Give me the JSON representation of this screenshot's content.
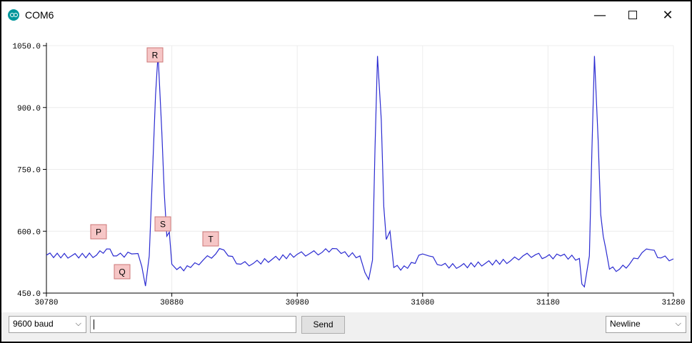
{
  "window": {
    "title": "COM6",
    "minimize": "—",
    "close": "✕"
  },
  "annotations": [
    "P",
    "Q",
    "R",
    "S",
    "T"
  ],
  "bottom": {
    "baud": "9600 baud",
    "message": "",
    "send": "Send",
    "line_ending": "Newline"
  },
  "chart_data": {
    "type": "line",
    "xlim": [
      30780,
      31280
    ],
    "ylim": [
      450,
      1050
    ],
    "x_ticks": [
      "30780",
      "30880",
      "30980",
      "31080",
      "31180",
      "31280"
    ],
    "y_ticks": [
      "450.0",
      "600.0",
      "750.0",
      "900.0",
      "1050.0"
    ],
    "grid": true,
    "series": [
      {
        "color": "#2b2bd1",
        "points": [
          [
            30780,
            542
          ],
          [
            30800,
            540
          ],
          [
            30820,
            542
          ],
          [
            30828,
            557
          ],
          [
            30836,
            540
          ],
          [
            30848,
            545
          ],
          [
            30853,
            546
          ],
          [
            30856,
            515
          ],
          [
            30859,
            467
          ],
          [
            30862,
            540
          ],
          [
            30867,
            930
          ],
          [
            30869,
            1030
          ],
          [
            30872,
            840
          ],
          [
            30874,
            690
          ],
          [
            30876,
            588
          ],
          [
            30878,
            598
          ],
          [
            30880,
            520
          ],
          [
            30884,
            507
          ],
          [
            30895,
            512
          ],
          [
            30905,
            530
          ],
          [
            30915,
            545
          ],
          [
            30918,
            558
          ],
          [
            30925,
            540
          ],
          [
            30935,
            520
          ],
          [
            30945,
            522
          ],
          [
            30960,
            532
          ],
          [
            30980,
            544
          ],
          [
            30990,
            546
          ],
          [
            31000,
            549
          ],
          [
            31008,
            558
          ],
          [
            31015,
            546
          ],
          [
            31030,
            540
          ],
          [
            31034,
            500
          ],
          [
            31037,
            483
          ],
          [
            31040,
            530
          ],
          [
            31042,
            800
          ],
          [
            31044,
            1025
          ],
          [
            31047,
            870
          ],
          [
            31049,
            660
          ],
          [
            31051,
            580
          ],
          [
            31054,
            600
          ],
          [
            31057,
            512
          ],
          [
            31068,
            510
          ],
          [
            31080,
            545
          ],
          [
            31085,
            540
          ],
          [
            31095,
            517
          ],
          [
            31110,
            515
          ],
          [
            31130,
            522
          ],
          [
            31150,
            528
          ],
          [
            31160,
            540
          ],
          [
            31170,
            543
          ],
          [
            31178,
            537
          ],
          [
            31190,
            540
          ],
          [
            31205,
            534
          ],
          [
            31207,
            472
          ],
          [
            31209,
            465
          ],
          [
            31213,
            540
          ],
          [
            31215,
            800
          ],
          [
            31217,
            1025
          ],
          [
            31220,
            820
          ],
          [
            31222,
            640
          ],
          [
            31224,
            588
          ],
          [
            31226,
            558
          ],
          [
            31229,
            508
          ],
          [
            31237,
            508
          ],
          [
            31245,
            520
          ],
          [
            31255,
            548
          ],
          [
            31262,
            555
          ],
          [
            31270,
            535
          ],
          [
            31280,
            533
          ]
        ]
      }
    ]
  }
}
